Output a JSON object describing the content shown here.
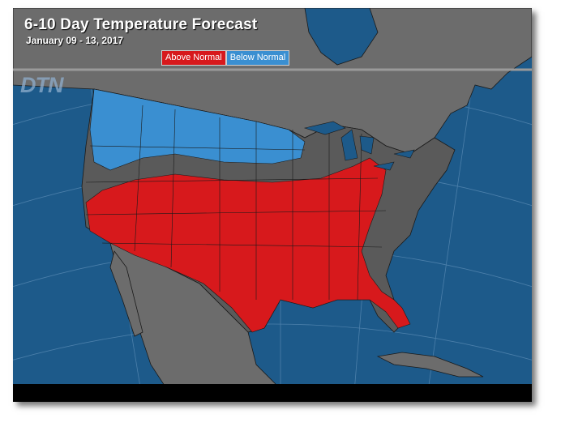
{
  "title": "6-10 Day Temperature Forecast",
  "subtitle": "January 09 - 13, 2017",
  "watermark": "DTN",
  "legend": [
    {
      "label": "Above Normal",
      "color": "#d7191c"
    },
    {
      "label": "Below Normal",
      "color": "#3a8fd1"
    }
  ],
  "colors": {
    "ocean": "#1d5a8a",
    "land": "#6c6c6c",
    "near_normal": "#5a5a5a",
    "above_normal": "#d7191c",
    "below_normal": "#3a8fd1",
    "borders": "#1a1a1a"
  }
}
